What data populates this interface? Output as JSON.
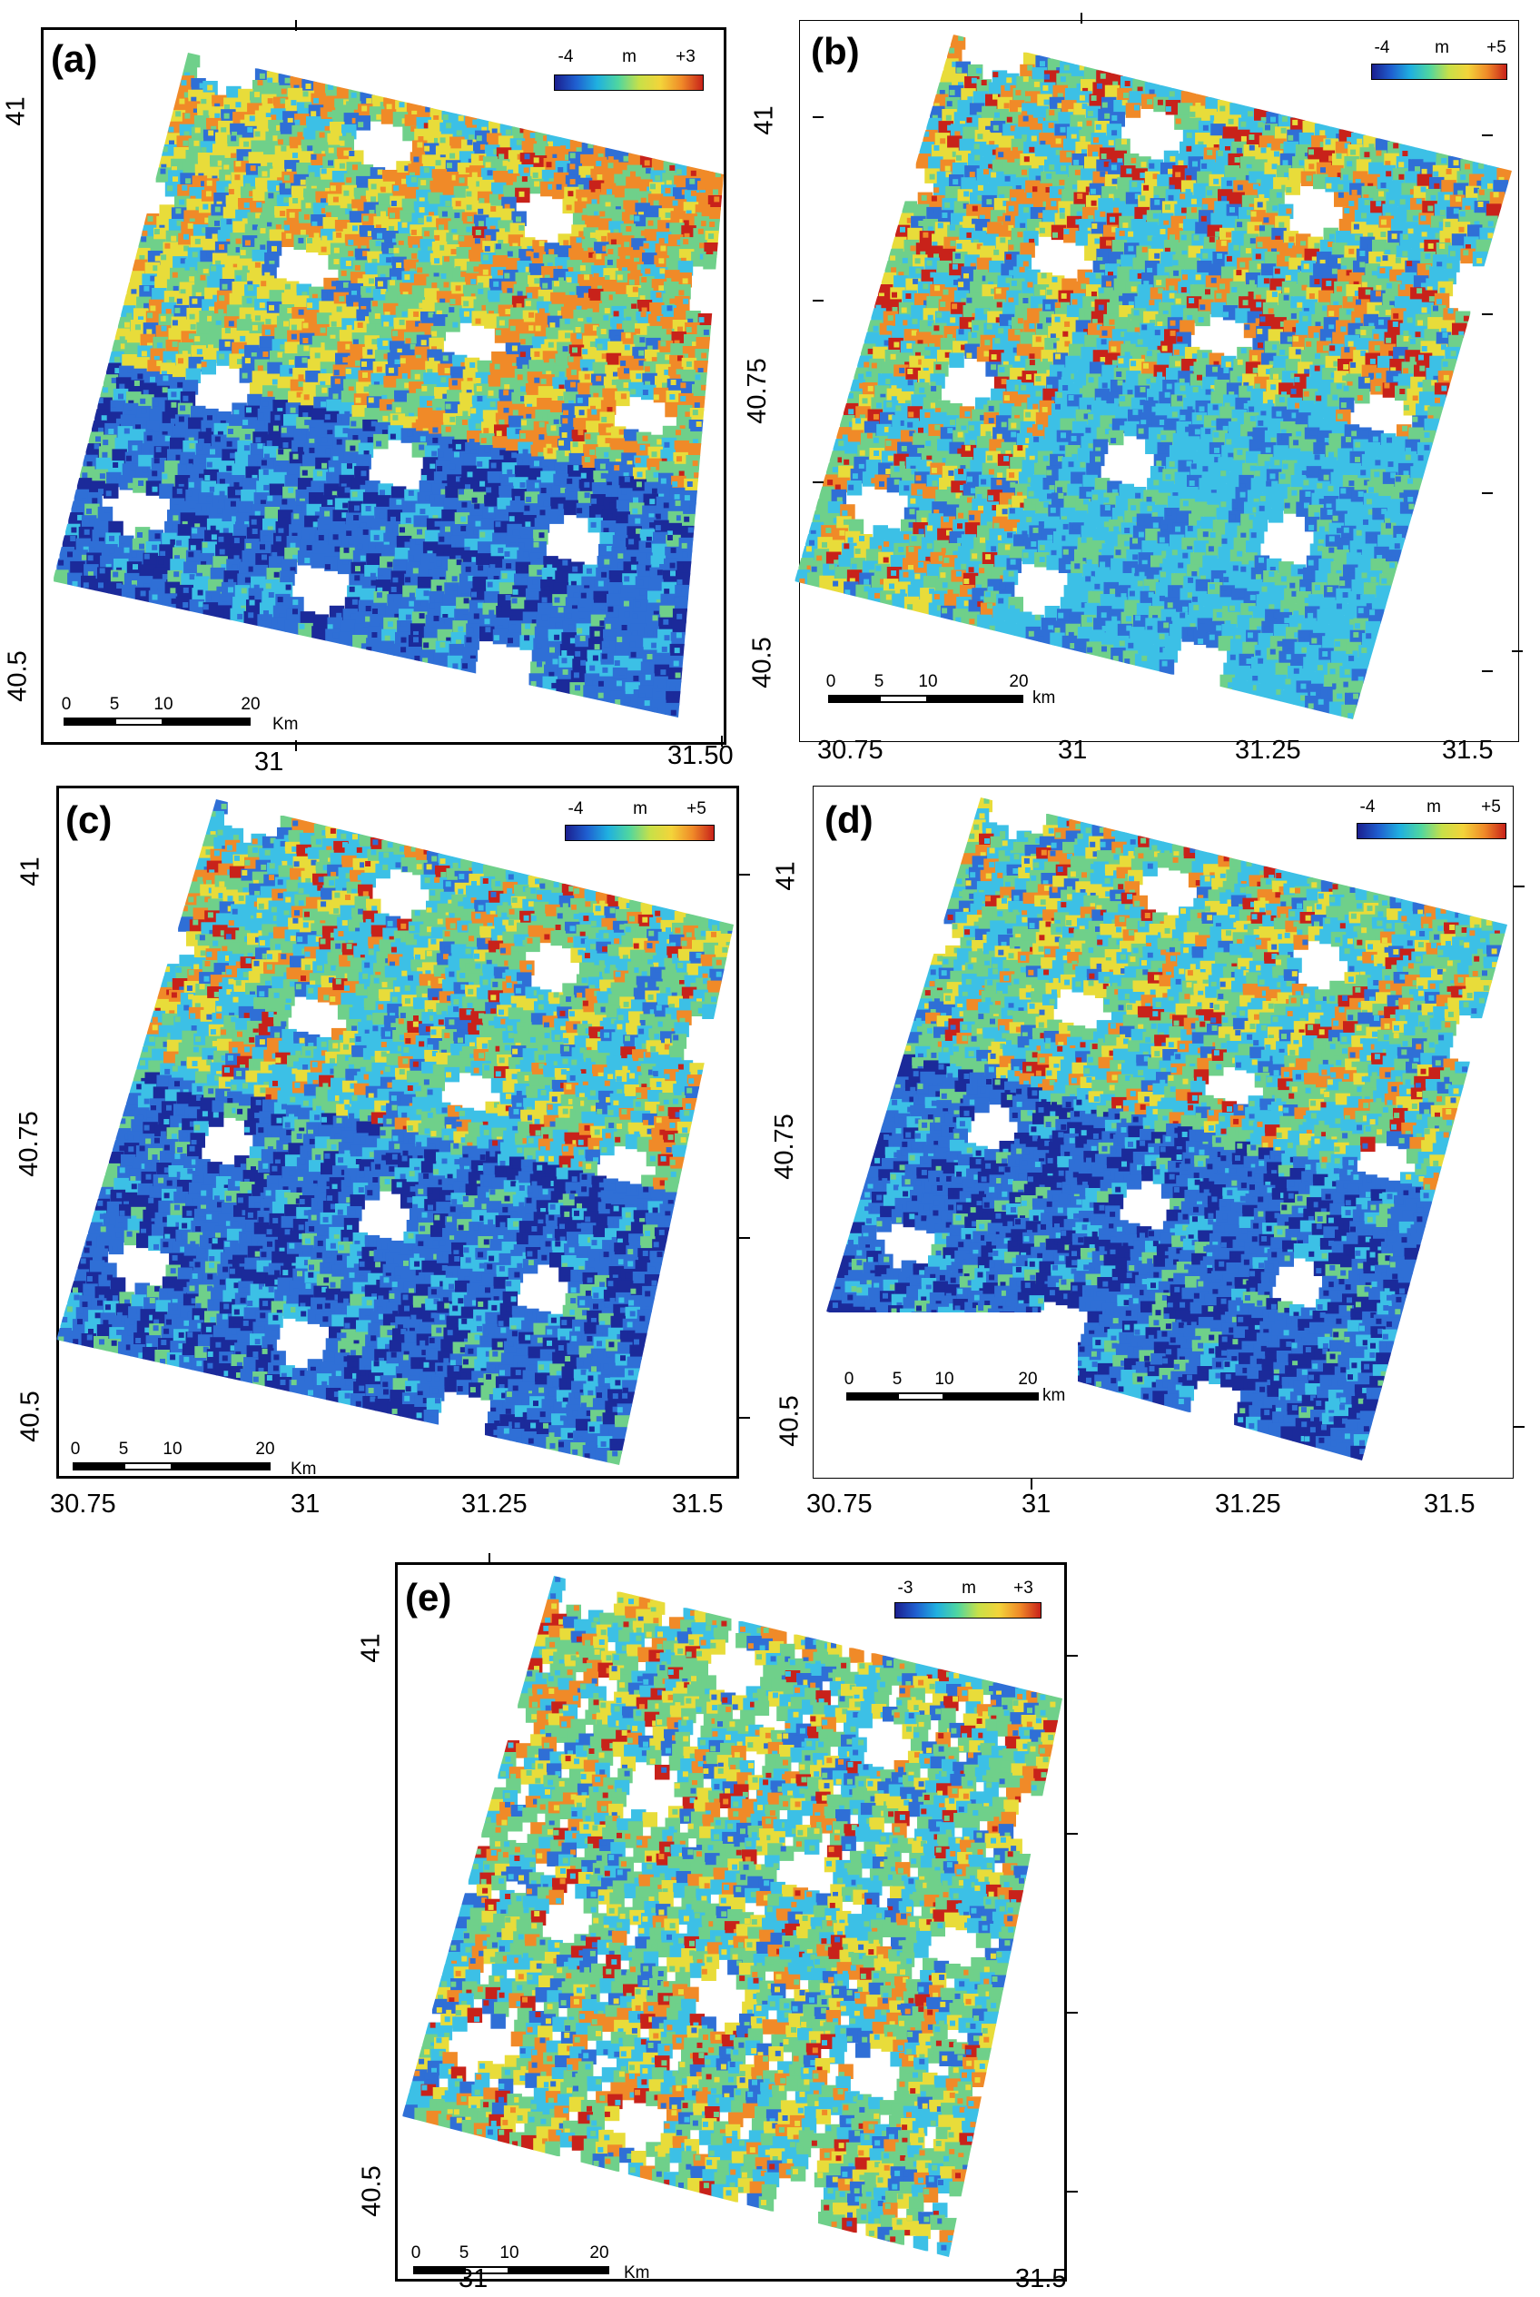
{
  "colors": {
    "deep_blue": "#1b2a9a",
    "blue": "#2f6fd6",
    "cyan": "#3cc0e6",
    "green": "#6fd08a",
    "yellow": "#e8dc3a",
    "orange": "#f08a28",
    "red": "#c8221a"
  },
  "scale_bar": {
    "ticks": [
      "0",
      "5",
      "10",
      "20"
    ],
    "unit": "Km",
    "unit_lower": "km"
  },
  "panels": [
    {
      "id": "a",
      "label": "(a)",
      "legend": {
        "min": "-4",
        "unit": "m",
        "max": "+3"
      },
      "y_ticks": [
        "41",
        "40.5"
      ],
      "x_ticks": [
        "31",
        "31.50"
      ],
      "pattern": "warm-north"
    },
    {
      "id": "b",
      "label": "(b)",
      "legend": {
        "min": "-4",
        "unit": "m",
        "max": "+5"
      },
      "y_ticks": [
        "41",
        "40.75",
        "40.5"
      ],
      "x_ticks": [
        "30.75",
        "31",
        "31.25",
        "31.5"
      ],
      "pattern": "mixed"
    },
    {
      "id": "c",
      "label": "(c)",
      "legend": {
        "min": "-4",
        "unit": "m",
        "max": "+5"
      },
      "y_ticks": [
        "41",
        "40.75",
        "40.5"
      ],
      "x_ticks": [
        "30.75",
        "31",
        "31.25",
        "31.5"
      ],
      "pattern": "blue-south"
    },
    {
      "id": "d",
      "label": "(d)",
      "legend": {
        "min": "-4",
        "unit": "m",
        "max": "+5"
      },
      "y_ticks": [
        "41",
        "40.75",
        "40.5"
      ],
      "x_ticks": [
        "30.75",
        "31",
        "31.25",
        "31.5"
      ],
      "pattern": "blue-south"
    },
    {
      "id": "e",
      "label": "(e)",
      "legend": {
        "min": "-3",
        "unit": "m",
        "max": "+3"
      },
      "y_ticks": [
        "41",
        "40.5"
      ],
      "x_ticks": [
        "31",
        "31.5"
      ],
      "pattern": "green-sparse"
    }
  ]
}
